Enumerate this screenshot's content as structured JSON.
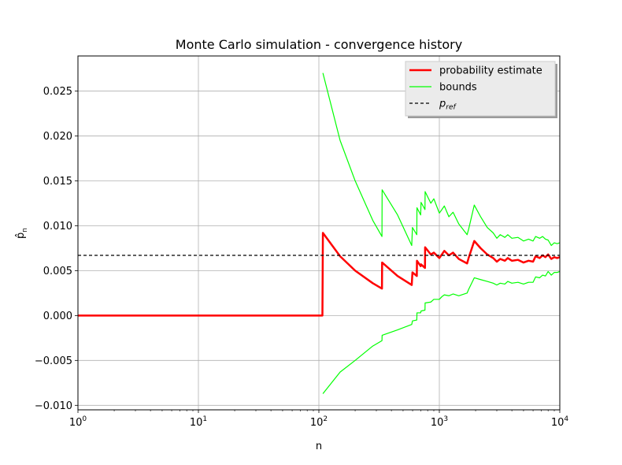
{
  "chart_data": {
    "type": "line",
    "title": "Monte Carlo simulation - convergence history",
    "xlabel": "n",
    "ylabel": "p̂n",
    "xscale": "log",
    "xlim": [
      1,
      10000
    ],
    "ylim": [
      -0.0105,
      0.0289
    ],
    "grid": true,
    "legend_position": "top-right",
    "x_tick_labels": [
      {
        "base": "10",
        "exp": "0",
        "value": 1
      },
      {
        "base": "10",
        "exp": "1",
        "value": 10
      },
      {
        "base": "10",
        "exp": "2",
        "value": 100
      },
      {
        "base": "10",
        "exp": "3",
        "value": 1000
      },
      {
        "base": "10",
        "exp": "4",
        "value": 10000
      }
    ],
    "y_ticks": [
      -0.01,
      -0.005,
      0.0,
      0.005,
      0.01,
      0.015,
      0.02,
      0.025
    ],
    "y_tick_labels": [
      "−0.010",
      "−0.005",
      "0.000",
      "0.005",
      "0.010",
      "0.015",
      "0.020",
      "0.025"
    ],
    "series": [
      {
        "name": "probability estimate",
        "color": "#ff0000",
        "style": "solid",
        "points": [
          [
            1,
            0.0
          ],
          [
            107,
            0.0
          ],
          [
            108,
            0.0092
          ],
          [
            150,
            0.0066
          ],
          [
            200,
            0.005
          ],
          [
            280,
            0.0036
          ],
          [
            334,
            0.003
          ],
          [
            335,
            0.0059
          ],
          [
            450,
            0.0044
          ],
          [
            590,
            0.0034
          ],
          [
            598,
            0.0048
          ],
          [
            650,
            0.0044
          ],
          [
            652,
            0.0061
          ],
          [
            700,
            0.0055
          ],
          [
            705,
            0.0057
          ],
          [
            760,
            0.0053
          ],
          [
            762,
            0.0076
          ],
          [
            850,
            0.0068
          ],
          [
            900,
            0.007
          ],
          [
            1000,
            0.0064
          ],
          [
            1050,
            0.0068
          ],
          [
            1100,
            0.0072
          ],
          [
            1200,
            0.0067
          ],
          [
            1300,
            0.007
          ],
          [
            1450,
            0.0063
          ],
          [
            1700,
            0.0058
          ],
          [
            1750,
            0.0064
          ],
          [
            1950,
            0.0083
          ],
          [
            2200,
            0.0075
          ],
          [
            2500,
            0.0068
          ],
          [
            2800,
            0.0064
          ],
          [
            3000,
            0.006
          ],
          [
            3200,
            0.0063
          ],
          [
            3500,
            0.0061
          ],
          [
            3700,
            0.0064
          ],
          [
            4000,
            0.0061
          ],
          [
            4500,
            0.0062
          ],
          [
            5000,
            0.0059
          ],
          [
            5500,
            0.0061
          ],
          [
            6000,
            0.006
          ],
          [
            6300,
            0.0066
          ],
          [
            6800,
            0.0064
          ],
          [
            7200,
            0.0067
          ],
          [
            7600,
            0.0065
          ],
          [
            8000,
            0.0068
          ],
          [
            8500,
            0.0063
          ],
          [
            9000,
            0.0065
          ],
          [
            9500,
            0.0064
          ],
          [
            10000,
            0.0065
          ]
        ]
      },
      {
        "name": "bounds",
        "color": "#00ff00",
        "style": "solid",
        "points": [
          [
            108,
            0.027
          ],
          [
            150,
            0.0195
          ],
          [
            200,
            0.015
          ],
          [
            280,
            0.0106
          ],
          [
            334,
            0.0088
          ],
          [
            335,
            0.014
          ],
          [
            450,
            0.0112
          ],
          [
            590,
            0.0078
          ],
          [
            598,
            0.0098
          ],
          [
            650,
            0.009
          ],
          [
            652,
            0.012
          ],
          [
            700,
            0.0112
          ],
          [
            705,
            0.0126
          ],
          [
            760,
            0.0118
          ],
          [
            762,
            0.0138
          ],
          [
            850,
            0.0125
          ],
          [
            900,
            0.013
          ],
          [
            1000,
            0.0114
          ],
          [
            1050,
            0.0118
          ],
          [
            1100,
            0.0122
          ],
          [
            1200,
            0.011
          ],
          [
            1300,
            0.0115
          ],
          [
            1450,
            0.0102
          ],
          [
            1700,
            0.009
          ],
          [
            1750,
            0.0096
          ],
          [
            1950,
            0.0123
          ],
          [
            2200,
            0.011
          ],
          [
            2500,
            0.0098
          ],
          [
            2800,
            0.0092
          ],
          [
            3000,
            0.0086
          ],
          [
            3200,
            0.009
          ],
          [
            3500,
            0.0087
          ],
          [
            3700,
            0.009
          ],
          [
            4000,
            0.0086
          ],
          [
            4500,
            0.0087
          ],
          [
            5000,
            0.0083
          ],
          [
            5500,
            0.0085
          ],
          [
            6000,
            0.0083
          ],
          [
            6300,
            0.0088
          ],
          [
            6800,
            0.0086
          ],
          [
            7200,
            0.0088
          ],
          [
            7600,
            0.0085
          ],
          [
            8000,
            0.0084
          ],
          [
            8500,
            0.0078
          ],
          [
            9000,
            0.0081
          ],
          [
            9500,
            0.008
          ],
          [
            10000,
            0.0081
          ]
        ]
      },
      {
        "name": "",
        "color": "#00ff00",
        "style": "solid",
        "points": [
          [
            108,
            -0.0087
          ],
          [
            150,
            -0.0063
          ],
          [
            200,
            -0.005
          ],
          [
            280,
            -0.0034
          ],
          [
            334,
            -0.0028
          ],
          [
            335,
            -0.0022
          ],
          [
            450,
            -0.0016
          ],
          [
            590,
            -0.001
          ],
          [
            598,
            -0.0006
          ],
          [
            650,
            -0.0005
          ],
          [
            652,
            0.0003
          ],
          [
            700,
            0.0003
          ],
          [
            705,
            0.0005
          ],
          [
            760,
            0.0006
          ],
          [
            762,
            0.0014
          ],
          [
            850,
            0.0015
          ],
          [
            900,
            0.0018
          ],
          [
            1000,
            0.0018
          ],
          [
            1050,
            0.0021
          ],
          [
            1100,
            0.0023
          ],
          [
            1200,
            0.0022
          ],
          [
            1300,
            0.0024
          ],
          [
            1450,
            0.0022
          ],
          [
            1700,
            0.0025
          ],
          [
            1750,
            0.0029
          ],
          [
            1950,
            0.0042
          ],
          [
            2200,
            0.004
          ],
          [
            2500,
            0.0038
          ],
          [
            2800,
            0.0036
          ],
          [
            3000,
            0.0034
          ],
          [
            3200,
            0.0036
          ],
          [
            3500,
            0.0035
          ],
          [
            3700,
            0.0038
          ],
          [
            4000,
            0.0036
          ],
          [
            4500,
            0.0037
          ],
          [
            5000,
            0.0035
          ],
          [
            5500,
            0.0037
          ],
          [
            6000,
            0.0037
          ],
          [
            6300,
            0.0043
          ],
          [
            6800,
            0.0042
          ],
          [
            7200,
            0.0045
          ],
          [
            7600,
            0.0044
          ],
          [
            8000,
            0.0049
          ],
          [
            8500,
            0.0045
          ],
          [
            9000,
            0.0048
          ],
          [
            9500,
            0.0048
          ],
          [
            10000,
            0.0049
          ]
        ]
      },
      {
        "name": "p_ref",
        "color": "#000000",
        "style": "dashed",
        "points": [
          [
            1,
            0.0067
          ],
          [
            10000,
            0.0067
          ]
        ]
      }
    ],
    "legend": [
      {
        "label": "probability estimate",
        "sub": "",
        "color": "#ff0000",
        "style": "solid",
        "width": 2.5
      },
      {
        "label": "bounds",
        "sub": "",
        "color": "#00ff00",
        "style": "solid",
        "width": 1.2
      },
      {
        "label": "p",
        "sub": "ref",
        "color": "#000000",
        "style": "dashed",
        "width": 1.2
      }
    ]
  }
}
